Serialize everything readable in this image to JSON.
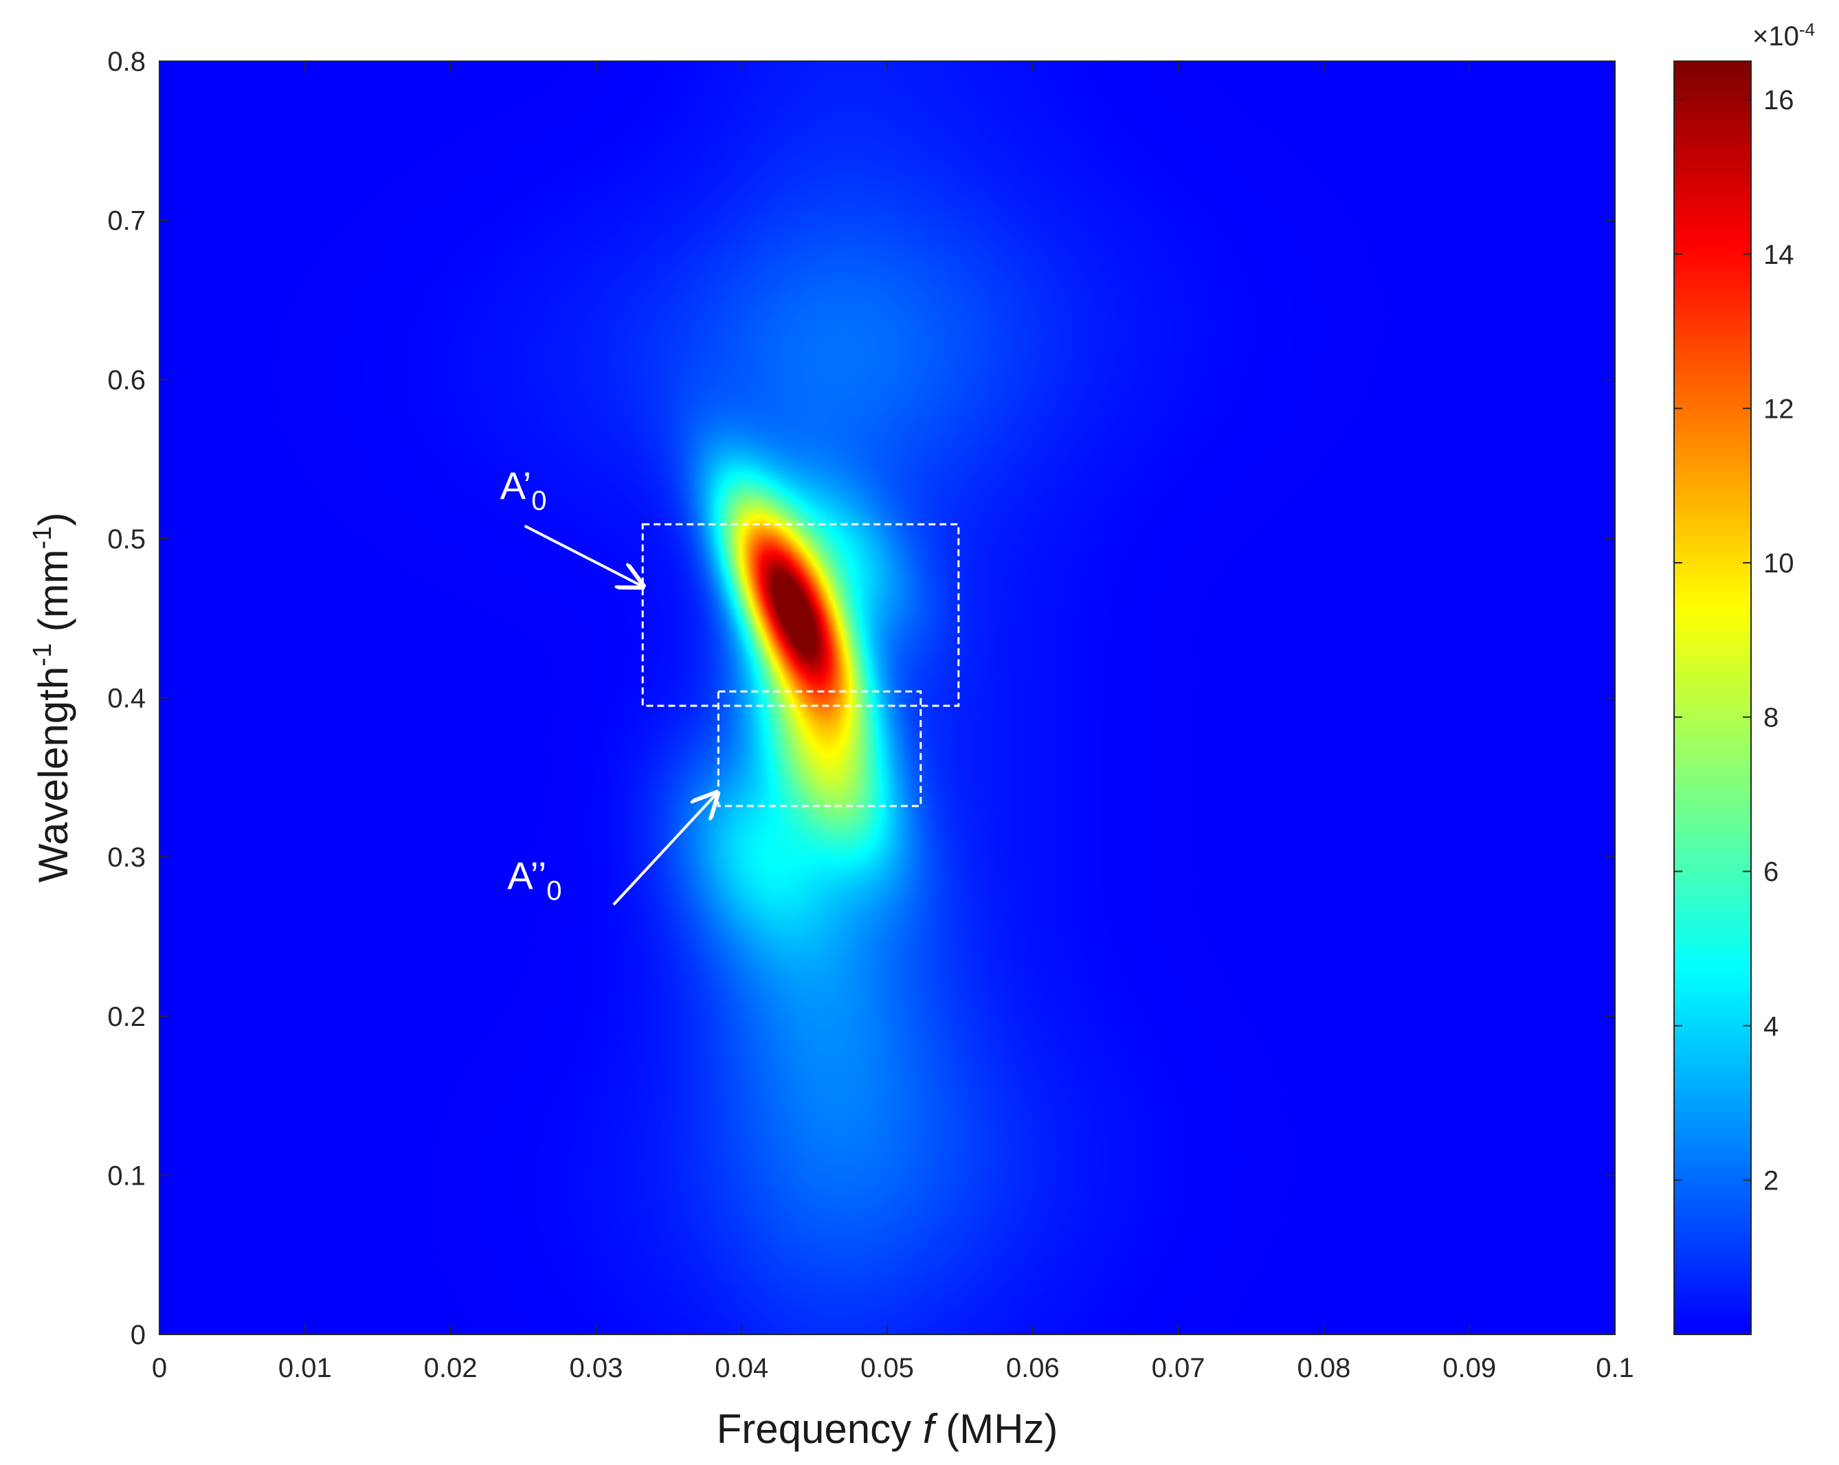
{
  "chart_data": {
    "type": "heatmap",
    "title": "",
    "xlabel": {
      "pre": "Frequency ",
      "italic": "f",
      "post": " (MHz)"
    },
    "ylabel": {
      "pre": "Wavelength",
      "sup": "-1",
      "mid": " (mm",
      "sup2": "-1",
      "post": ")"
    },
    "xlim": [
      0,
      0.1
    ],
    "ylim": [
      0,
      0.8
    ],
    "xticks": [
      0,
      0.01,
      0.02,
      0.03,
      0.04,
      0.05,
      0.06,
      0.07,
      0.08,
      0.09,
      0.1
    ],
    "xtick_labels": [
      "0",
      "0.01",
      "0.02",
      "0.03",
      "0.04",
      "0.05",
      "0.06",
      "0.07",
      "0.08",
      "0.09",
      "0.1"
    ],
    "yticks": [
      0,
      0.1,
      0.2,
      0.3,
      0.4,
      0.5,
      0.6,
      0.7,
      0.8
    ],
    "ytick_labels": [
      "0",
      "0.1",
      "0.2",
      "0.3",
      "0.4",
      "0.5",
      "0.6",
      "0.7",
      "0.8"
    ],
    "grid": false,
    "colormap": "jet",
    "colorbar": {
      "range": [
        0,
        16.5
      ],
      "ticks": [
        2,
        4,
        6,
        8,
        10,
        12,
        14,
        16
      ],
      "tick_labels": [
        "2",
        "4",
        "6",
        "8",
        "10",
        "12",
        "14",
        "16"
      ],
      "exponent_label": {
        "base": "×10",
        "exp": "-4"
      }
    },
    "intensity_components": [
      {
        "cx": 0.0435,
        "cy": 0.455,
        "sx": 0.0064,
        "sy": 0.0165,
        "angle_deg": 22,
        "amp": 16.5
      },
      {
        "cx": 0.0455,
        "cy": 0.36,
        "sx": 0.006,
        "sy": 0.02,
        "angle_deg": 25,
        "amp": 6.0
      },
      {
        "cx": 0.041,
        "cy": 0.305,
        "sx": 0.0055,
        "sy": 0.03,
        "angle_deg": 18,
        "amp": 3.2
      },
      {
        "cx": 0.047,
        "cy": 0.49,
        "sx": 0.005,
        "sy": 0.022,
        "angle_deg": 30,
        "amp": 3.0
      },
      {
        "cx": 0.045,
        "cy": 0.22,
        "sx": 0.009,
        "sy": 0.045,
        "angle_deg": 10,
        "amp": 1.5
      },
      {
        "cx": 0.046,
        "cy": 0.62,
        "sx": 0.008,
        "sy": 0.1,
        "angle_deg": 6,
        "amp": 1.3
      },
      {
        "cx": 0.048,
        "cy": 0.1,
        "sx": 0.008,
        "sy": 0.08,
        "angle_deg": 8,
        "amp": 1.0
      },
      {
        "cx": 0.05,
        "cy": 0.44,
        "sx": 0.045,
        "sy": 0.06,
        "angle_deg": 0,
        "amp": 0.6
      },
      {
        "cx": 0.045,
        "cy": 0.35,
        "sx": 0.04,
        "sy": 0.04,
        "angle_deg": 0,
        "amp": 0.5
      }
    ],
    "annotations": [
      {
        "label": "A’",
        "sub": "0",
        "label_xy": [
          0.0234,
          0.525
        ],
        "arrow_from": [
          0.0251,
          0.508
        ],
        "arrow_to": [
          0.0332,
          0.47
        ],
        "box": [
          0.0332,
          0.0549,
          0.395,
          0.509
        ]
      },
      {
        "label": "A’’",
        "sub": "0",
        "label_xy": [
          0.0239,
          0.28
        ],
        "arrow_from": [
          0.0312,
          0.27
        ],
        "arrow_to": [
          0.0383,
          0.34
        ],
        "box": [
          0.0384,
          0.0523,
          0.332,
          0.404
        ]
      }
    ]
  }
}
